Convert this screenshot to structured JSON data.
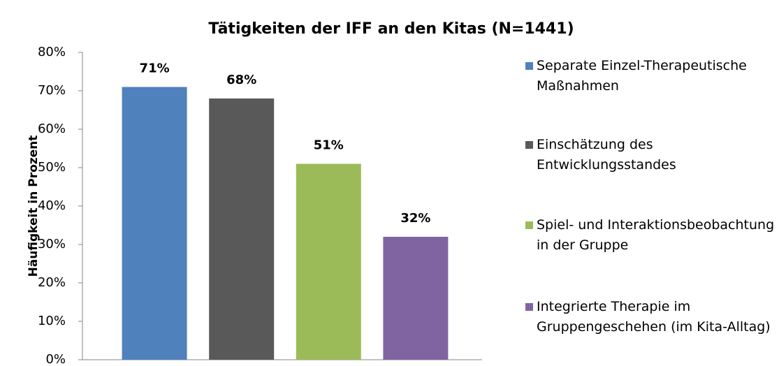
{
  "chart_data": {
    "type": "bar",
    "title": "Tätigkeiten der IFF an den Kitas (N=1441)",
    "y_label": "Häufigkeit in Prozent",
    "categories": [
      null
    ],
    "series": [
      {
        "name": "Separate Einzel-Therapeutische Maßnahmen",
        "color": "#4f81bd",
        "values": [
          71
        ],
        "value_labels": [
          "71%"
        ]
      },
      {
        "name": "Einschätzung des Entwicklungsstandes",
        "color": "#595959",
        "values": [
          68
        ],
        "value_labels": [
          "68%"
        ]
      },
      {
        "name": "Spiel- und Interaktionsbeobachtung in der Gruppe",
        "color": "#9bbb59",
        "values": [
          51
        ],
        "value_labels": [
          "51%"
        ]
      },
      {
        "name": "Integrierte Therapie im Gruppengeschehen (im Kita-Alltag)",
        "color": "#8064a2",
        "values": [
          32
        ],
        "value_labels": [
          "32%"
        ]
      }
    ],
    "ylim": [
      0,
      80
    ],
    "yticks": [
      {
        "value": 0,
        "label": "0%"
      },
      {
        "value": 10,
        "label": "10%"
      },
      {
        "value": 20,
        "label": "20%"
      },
      {
        "value": 30,
        "label": "30%"
      },
      {
        "value": 40,
        "label": "40%"
      },
      {
        "value": 50,
        "label": "50%"
      },
      {
        "value": 60,
        "label": "60%"
      },
      {
        "value": 70,
        "label": "70%"
      },
      {
        "value": 80,
        "label": "80%"
      }
    ],
    "grid": false,
    "legend": "right"
  }
}
